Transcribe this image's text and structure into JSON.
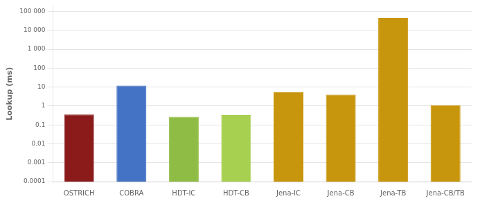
{
  "chart_data": {
    "type": "bar",
    "categories": [
      "OSTRICH",
      "COBRA",
      "HDT-IC",
      "HDT-CB",
      "Jena-IC",
      "Jena-CB",
      "Jena-TB",
      "Jena-CB/TB"
    ],
    "values": [
      0.35,
      12.0,
      0.27,
      0.33,
      5.5,
      4.0,
      45000,
      1.1
    ],
    "colors": [
      "#8B1A1A",
      "#4472C4",
      "#8FBC45",
      "#A8D050",
      "#C8960C",
      "#C8960C",
      "#C8960C",
      "#C8960C"
    ],
    "ylabel": "Lookup (ms)",
    "ylim": [
      0.0001,
      200000
    ],
    "yticks": [
      0.0001,
      0.001,
      0.01,
      0.1,
      1,
      10,
      100,
      {
        "value": 1000,
        "label": "1 000"
      },
      {
        "value": 10000,
        "label": "10 000"
      },
      {
        "value": 100000,
        "label": "100 000"
      }
    ],
    "log": "y",
    "grid": true
  }
}
